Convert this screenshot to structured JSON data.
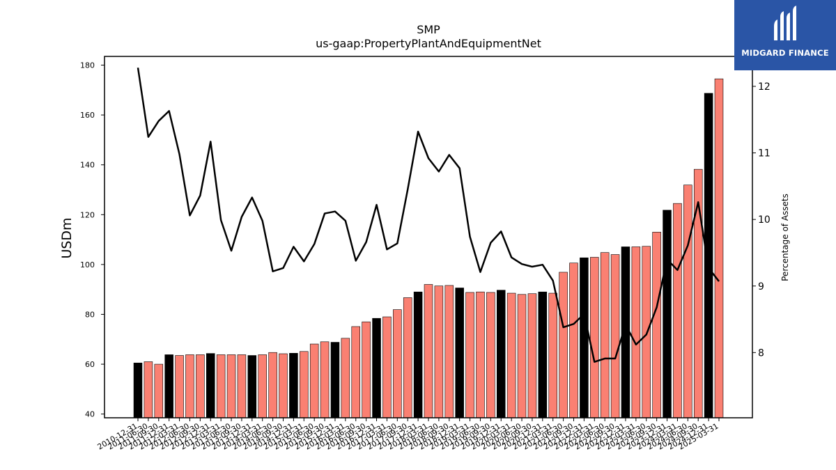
{
  "chart_data": {
    "type": "bar",
    "title": "SMP",
    "subtitle": "us-gaap:PropertyPlantAndEquipmentNet",
    "ylabel": "USDm",
    "y2label": "Percentage of Assets",
    "ylim": [
      38.5,
      183.5
    ],
    "y2lim": [
      7.02,
      12.45
    ],
    "yticks": [
      "40",
      "60",
      "80",
      "100",
      "120",
      "140",
      "160",
      "180"
    ],
    "y2ticks": [
      "8",
      "9",
      "10",
      "11",
      "12"
    ],
    "bar_colors": {
      "annual": "#000000",
      "quarterly": "#fa8072"
    },
    "line_color": "#000000",
    "categories": [
      "2010-12-31",
      "2011-06-30",
      "2011-09-30",
      "2011-12-31",
      "2012-03-31",
      "2012-06-30",
      "2012-09-30",
      "2012-12-31",
      "2013-03-31",
      "2013-06-30",
      "2013-09-30",
      "2013-12-31",
      "2014-03-31",
      "2014-06-30",
      "2014-09-30",
      "2014-12-31",
      "2015-03-31",
      "2015-06-30",
      "2015-09-30",
      "2015-12-31",
      "2016-03-31",
      "2016-06-30",
      "2016-09-30",
      "2016-12-31",
      "2017-03-31",
      "2017-06-30",
      "2017-09-30",
      "2017-12-31",
      "2018-03-31",
      "2018-06-30",
      "2018-09-30",
      "2018-12-31",
      "2019-03-31",
      "2019-06-30",
      "2019-09-30",
      "2019-12-31",
      "2020-03-31",
      "2020-06-30",
      "2020-09-30",
      "2020-12-31",
      "2021-03-31",
      "2021-06-30",
      "2021-09-30",
      "2021-12-31",
      "2022-03-31",
      "2022-06-30",
      "2022-09-30",
      "2022-12-31",
      "2023-03-31",
      "2023-06-30",
      "2023-09-30",
      "2023-12-31",
      "2024-03-31",
      "2024-06-30",
      "2024-09-30",
      "2024-12-31",
      "2025-03-31"
    ],
    "series": [
      {
        "kind": "bar",
        "values": [
          60.5,
          61.0,
          60.0,
          63.8,
          63.5,
          63.8,
          63.8,
          64.3,
          63.8,
          63.8,
          63.8,
          63.5,
          63.8,
          64.7,
          64.2,
          64.4,
          65.1,
          68.1,
          69.0,
          68.8,
          70.4,
          75.1,
          77.0,
          78.4,
          79.0,
          81.9,
          86.7,
          89.0,
          92.0,
          91.4,
          91.6,
          90.6,
          88.8,
          89.0,
          88.8,
          89.7,
          88.5,
          88.0,
          88.3,
          89.0,
          88.5,
          96.9,
          100.6,
          102.7,
          102.9,
          104.8,
          104.0,
          107.1,
          107.1,
          107.3,
          113.0,
          121.8,
          124.5,
          131.9,
          138.2,
          168.7,
          174.5
        ],
        "annual": [
          true,
          false,
          false,
          true,
          false,
          false,
          false,
          true,
          false,
          false,
          false,
          true,
          false,
          false,
          false,
          true,
          false,
          false,
          false,
          true,
          false,
          false,
          false,
          true,
          false,
          false,
          false,
          true,
          false,
          false,
          false,
          true,
          false,
          false,
          false,
          true,
          false,
          false,
          false,
          true,
          false,
          false,
          false,
          true,
          false,
          false,
          false,
          true,
          false,
          false,
          false,
          true,
          false,
          false,
          false,
          true,
          false
        ]
      },
      {
        "kind": "line",
        "axis": "right",
        "values": [
          12.28,
          11.24,
          11.48,
          11.63,
          10.98,
          10.06,
          10.36,
          11.17,
          9.99,
          9.53,
          10.04,
          10.33,
          9.98,
          9.22,
          9.27,
          9.59,
          9.37,
          9.63,
          10.09,
          10.12,
          9.98,
          9.38,
          9.66,
          10.22,
          9.55,
          9.64,
          10.45,
          11.32,
          10.92,
          10.72,
          10.97,
          10.77,
          9.74,
          9.21,
          9.65,
          9.82,
          9.43,
          9.33,
          9.29,
          9.32,
          9.08,
          8.38,
          8.43,
          8.58,
          7.86,
          7.91,
          7.91,
          8.42,
          8.12,
          8.27,
          8.68,
          9.4,
          9.24,
          9.61,
          10.26,
          9.27,
          9.07
        ]
      }
    ]
  },
  "logo": {
    "text": "MIDGARD FINANCE"
  }
}
